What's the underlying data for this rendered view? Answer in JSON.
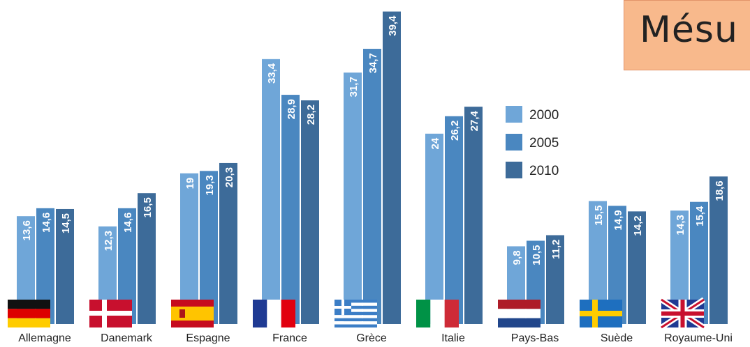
{
  "title": "Mésu",
  "chart_data": {
    "type": "bar",
    "title": "",
    "xlabel": "",
    "ylabel": "",
    "ylim": [
      0,
      40
    ],
    "grid": false,
    "legend_position": "top-right",
    "categories": [
      "Allemagne",
      "Danemark",
      "Espagne",
      "France",
      "Grèce",
      "Italie",
      "Pays-Bas",
      "Suède",
      "Royaume-Uni"
    ],
    "series": [
      {
        "name": "2000",
        "color": "#6fa6d8",
        "values": [
          13.6,
          12.3,
          19,
          33.4,
          31.7,
          24,
          9.8,
          15.5,
          14.3
        ],
        "labels": [
          "13,6",
          "12,3",
          "19",
          "33,4",
          "31,7",
          "24",
          "9,8",
          "15,5",
          "14,3"
        ]
      },
      {
        "name": "2005",
        "color": "#4a87c0",
        "values": [
          14.6,
          14.6,
          19.3,
          28.9,
          34.7,
          26.2,
          10.5,
          14.9,
          15.4
        ],
        "labels": [
          "14,6",
          "14,6",
          "19,3",
          "28,9",
          "34,7",
          "26,2",
          "10,5",
          "14,9",
          "15,4"
        ]
      },
      {
        "name": "2010",
        "color": "#3d6b99",
        "values": [
          14.5,
          16.5,
          20.3,
          28.2,
          39.4,
          27.4,
          11.2,
          14.2,
          18.6
        ],
        "labels": [
          "14,5",
          "16,5",
          "20,3",
          "28,2",
          "39,4",
          "27,4",
          "11,2",
          "14,2",
          "18,6"
        ]
      }
    ],
    "flags": [
      "flag-germany-icon",
      "flag-denmark-icon",
      "flag-spain-icon",
      "flag-france-icon",
      "flag-greece-icon",
      "flag-italy-icon",
      "flag-netherlands-icon",
      "flag-sweden-icon",
      "flag-uk-icon"
    ]
  }
}
